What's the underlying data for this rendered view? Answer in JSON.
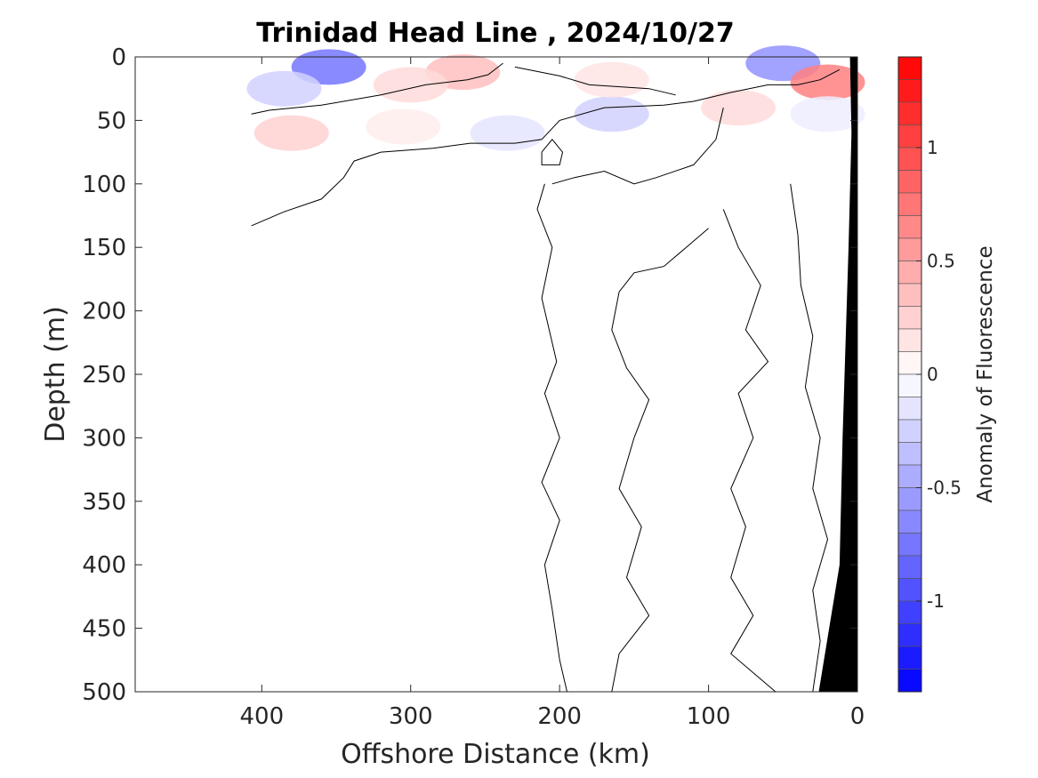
{
  "chart_data": {
    "type": "heatmap",
    "title": "Trinidad Head Line , 2024/10/27",
    "xlabel": "Offshore Distance (km)",
    "ylabel": "Depth (m)",
    "colorbar_label": "Anomaly of Fluorescence",
    "xlim": [
      485,
      0
    ],
    "ylim": [
      500,
      0
    ],
    "x_ticks": [
      400,
      300,
      200,
      100,
      0
    ],
    "x_tick_labels": [
      "400",
      "300",
      "200",
      "100",
      "0"
    ],
    "y_ticks": [
      0,
      50,
      100,
      150,
      200,
      250,
      300,
      350,
      400,
      450,
      500
    ],
    "y_tick_labels": [
      "0",
      "50",
      "100",
      "150",
      "200",
      "250",
      "300",
      "350",
      "400",
      "450",
      "500"
    ],
    "colorbar_range": [
      -1.4,
      1.4
    ],
    "colorbar_step": 0.1,
    "colorbar_ticks": [
      1,
      0.5,
      0,
      -0.5,
      -1
    ],
    "colorbar_tick_labels": [
      "1",
      "0.5",
      "0",
      "-0.5",
      "-1"
    ],
    "colormap": {
      "negative": "#0000ff",
      "zero": "#ffffff",
      "positive": "#ff0000"
    },
    "bathymetry_color": "#000000",
    "anomaly_patches": [
      {
        "x": 355,
        "depth": 8,
        "value": -0.75
      },
      {
        "x": 385,
        "depth": 25,
        "value": -0.25
      },
      {
        "x": 265,
        "depth": 12,
        "value": 0.35
      },
      {
        "x": 300,
        "depth": 22,
        "value": 0.2
      },
      {
        "x": 380,
        "depth": 60,
        "value": 0.25
      },
      {
        "x": 305,
        "depth": 55,
        "value": 0.1
      },
      {
        "x": 235,
        "depth": 60,
        "value": -0.15
      },
      {
        "x": 165,
        "depth": 45,
        "value": -0.25
      },
      {
        "x": 165,
        "depth": 18,
        "value": 0.15
      },
      {
        "x": 50,
        "depth": 5,
        "value": -0.6
      },
      {
        "x": 80,
        "depth": 40,
        "value": 0.2
      },
      {
        "x": 20,
        "depth": 20,
        "value": 0.7
      },
      {
        "x": 20,
        "depth": 45,
        "value": -0.1
      }
    ],
    "zero_contours": [
      [
        [
          407,
          45
        ],
        [
          395,
          42
        ],
        [
          360,
          38
        ],
        [
          320,
          30
        ],
        [
          290,
          22
        ],
        [
          262,
          18
        ],
        [
          248,
          14
        ],
        [
          238,
          5
        ]
      ],
      [
        [
          230,
          8
        ],
        [
          200,
          15
        ],
        [
          180,
          22
        ],
        [
          140,
          25
        ],
        [
          122,
          30
        ]
      ],
      [
        [
          407,
          133
        ],
        [
          385,
          122
        ],
        [
          360,
          112
        ],
        [
          345,
          95
        ],
        [
          338,
          82
        ],
        [
          320,
          75
        ],
        [
          285,
          72
        ],
        [
          260,
          68
        ],
        [
          230,
          68
        ],
        [
          212,
          65
        ],
        [
          200,
          50
        ],
        [
          170,
          40
        ],
        [
          130,
          38
        ],
        [
          110,
          35
        ],
        [
          85,
          28
        ],
        [
          60,
          22
        ],
        [
          40,
          22
        ],
        [
          25,
          18
        ],
        [
          12,
          10
        ]
      ],
      [
        [
          212,
          75
        ],
        [
          205,
          65
        ],
        [
          198,
          75
        ],
        [
          200,
          85
        ],
        [
          212,
          85
        ],
        [
          212,
          75
        ]
      ],
      [
        [
          210,
          100
        ],
        [
          215,
          120
        ],
        [
          205,
          150
        ],
        [
          212,
          190
        ],
        [
          202,
          240
        ],
        [
          210,
          265
        ],
        [
          200,
          300
        ],
        [
          212,
          335
        ],
        [
          200,
          365
        ],
        [
          210,
          400
        ],
        [
          205,
          435
        ],
        [
          200,
          475
        ],
        [
          195,
          500
        ]
      ],
      [
        [
          205,
          100
        ],
        [
          190,
          95
        ],
        [
          170,
          90
        ],
        [
          150,
          100
        ],
        [
          135,
          95
        ],
        [
          110,
          85
        ],
        [
          95,
          65
        ],
        [
          90,
          40
        ]
      ],
      [
        [
          100,
          135
        ],
        [
          115,
          150
        ],
        [
          130,
          165
        ],
        [
          150,
          170
        ],
        [
          160,
          185
        ],
        [
          165,
          215
        ],
        [
          155,
          245
        ],
        [
          140,
          270
        ],
        [
          150,
          300
        ],
        [
          160,
          340
        ],
        [
          145,
          370
        ],
        [
          155,
          410
        ],
        [
          140,
          440
        ],
        [
          160,
          470
        ],
        [
          165,
          500
        ]
      ],
      [
        [
          90,
          120
        ],
        [
          80,
          150
        ],
        [
          65,
          180
        ],
        [
          75,
          215
        ],
        [
          60,
          240
        ],
        [
          80,
          265
        ],
        [
          70,
          300
        ],
        [
          85,
          340
        ],
        [
          75,
          370
        ],
        [
          85,
          410
        ],
        [
          70,
          440
        ],
        [
          85,
          470
        ],
        [
          55,
          500
        ]
      ],
      [
        [
          45,
          100
        ],
        [
          40,
          140
        ],
        [
          38,
          180
        ],
        [
          30,
          220
        ],
        [
          35,
          260
        ],
        [
          25,
          300
        ],
        [
          30,
          340
        ],
        [
          20,
          380
        ],
        [
          30,
          420
        ],
        [
          25,
          460
        ],
        [
          30,
          500
        ]
      ]
    ],
    "bathymetry": [
      [
        5,
        0
      ],
      [
        0,
        0
      ],
      [
        0,
        500
      ],
      [
        26,
        500
      ],
      [
        12,
        400
      ],
      [
        10,
        300
      ],
      [
        6,
        150
      ],
      [
        4,
        60
      ],
      [
        5,
        0
      ]
    ]
  }
}
